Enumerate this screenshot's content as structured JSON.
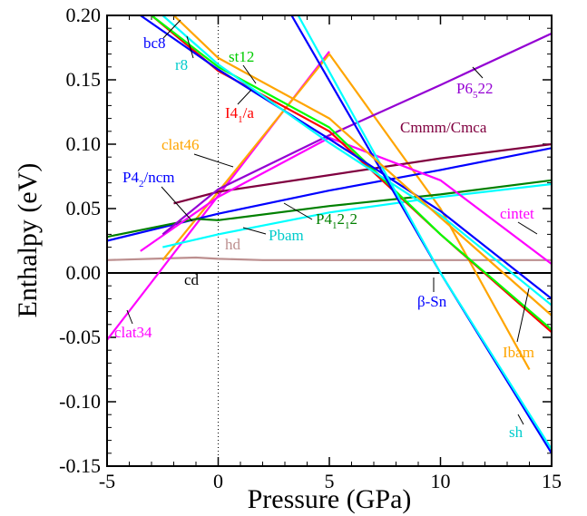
{
  "chart_data": {
    "type": "line",
    "xlabel": "Pressure (GPa)",
    "ylabel": "Enthalpy (eV)",
    "xlim": [
      -5,
      15
    ],
    "ylim": [
      -0.15,
      0.2
    ],
    "xticks": [
      -5,
      0,
      5,
      10,
      15
    ],
    "xtick_labels": [
      "-5",
      "0",
      "5",
      "10",
      "15"
    ],
    "yticks": [
      -0.15,
      -0.1,
      -0.05,
      0.0,
      0.05,
      0.1,
      0.15,
      0.2
    ],
    "ytick_labels": [
      "-0.15",
      "-0.10",
      "-0.05",
      "0.00",
      "0.05",
      "0.10",
      "0.15",
      "0.20"
    ],
    "grid": false,
    "legend": "none",
    "reference_line": {
      "x": 0,
      "style": "dotted"
    },
    "series": [
      {
        "name": "cd",
        "color": "#000000",
        "x": [
          -5,
          15
        ],
        "y": [
          0.0,
          0.0
        ]
      },
      {
        "name": "hd",
        "color": "#bc8f8f",
        "x": [
          -5,
          -3,
          -1,
          0,
          2,
          5,
          8,
          10,
          13,
          15
        ],
        "y": [
          0.01,
          0.011,
          0.012,
          0.011,
          0.01,
          0.01,
          0.01,
          0.01,
          0.01,
          0.01
        ]
      },
      {
        "name": "clat34",
        "color": "#ff00ff",
        "x": [
          -5,
          0,
          5
        ],
        "y": [
          -0.052,
          0.06,
          0.172
        ]
      },
      {
        "name": "clat46",
        "color": "#ffa500",
        "x": [
          -2.5,
          0,
          5,
          10,
          14
        ],
        "y": [
          0.01,
          0.063,
          0.17,
          0.05,
          -0.075
        ]
      },
      {
        "name": "P4_2/ncm",
        "color": "#0000ff",
        "x": [
          -5,
          0,
          5,
          10,
          15
        ],
        "y": [
          0.025,
          0.046,
          0.064,
          0.08,
          0.097
        ]
      },
      {
        "name": "P4_12_12",
        "color": "#008000",
        "x": [
          -5,
          -1,
          0,
          5,
          10,
          15
        ],
        "y": [
          0.028,
          0.042,
          0.041,
          0.052,
          0.061,
          0.072
        ]
      },
      {
        "name": "Pbam",
        "color": "#00ffff",
        "x": [
          -2.5,
          0,
          5,
          10,
          15
        ],
        "y": [
          0.02,
          0.03,
          0.047,
          0.059,
          0.069
        ]
      },
      {
        "name": "Cmmm/Cmca",
        "color": "#800040",
        "x": [
          -2,
          0,
          5,
          10,
          15
        ],
        "y": [
          0.054,
          0.063,
          0.076,
          0.089,
          0.1
        ]
      },
      {
        "name": "cintet",
        "color": "#ff00ff",
        "x": [
          -3.5,
          0,
          5,
          10,
          15
        ],
        "y": [
          0.017,
          0.059,
          0.105,
          0.072,
          0.007
        ]
      },
      {
        "name": "P6_522",
        "color": "#9400d3",
        "x": [
          -2.5,
          0,
          5,
          10,
          15
        ],
        "y": [
          0.03,
          0.065,
          0.107,
          0.146,
          0.186
        ]
      },
      {
        "name": "I4_1/a",
        "color": "#ff0000",
        "x": [
          -3,
          0,
          5,
          10,
          15
        ],
        "y": [
          0.2,
          0.157,
          0.11,
          0.03,
          -0.046
        ]
      },
      {
        "name": "st12",
        "color": "#00ff00",
        "x": [
          -3,
          0,
          5,
          10,
          15
        ],
        "y": [
          0.2,
          0.16,
          0.113,
          0.03,
          -0.044
        ]
      },
      {
        "name": "bc8",
        "color": "#0000ff",
        "x": [
          -3.5,
          0,
          5,
          10,
          15
        ],
        "y": [
          0.2,
          0.158,
          0.104,
          0.048,
          -0.02
        ]
      },
      {
        "name": "r8",
        "color": "#00ffff",
        "x": [
          -2.5,
          0,
          5,
          10,
          15
        ],
        "y": [
          0.2,
          0.162,
          0.101,
          0.045,
          -0.025
        ]
      },
      {
        "name": "β-Sn",
        "color": "#0000ff",
        "x": [
          3.3,
          10,
          15
        ],
        "y": [
          0.2,
          0.0,
          -0.14
        ]
      },
      {
        "name": "sh",
        "color": "#00ffff",
        "x": [
          3.6,
          10,
          15
        ],
        "y": [
          0.2,
          0.0,
          -0.137
        ]
      },
      {
        "name": "Ibam",
        "color": "#ffa500",
        "x": [
          -2,
          0,
          5,
          10,
          15
        ],
        "y": [
          0.2,
          0.167,
          0.12,
          0.043,
          -0.033
        ]
      }
    ],
    "labels": {
      "cd": "cd",
      "hd": "hd",
      "clat34": "clat34",
      "clat46": "clat46",
      "p42ncm_main": "P4",
      "p42ncm_sub": "2",
      "p42ncm_rest": "/ncm",
      "p41212_p": "P4",
      "p41212_s1": "1",
      "p41212_2a": "2",
      "p41212_s2": "1",
      "p41212_end": "2",
      "pbam": "Pbam",
      "cmmm": "Cmmm/Cmca",
      "cintet": "cintet",
      "p6522_p": "P6",
      "p6522_sub": "5",
      "p6522_end": "22",
      "i41a_i": "I4",
      "i41a_sub": "1",
      "i41a_end": "/a",
      "st12": "st12",
      "bc8": "bc8",
      "r8": "r8",
      "bsn": "β-Sn",
      "sh": "sh",
      "ibam": "Ibam"
    }
  }
}
